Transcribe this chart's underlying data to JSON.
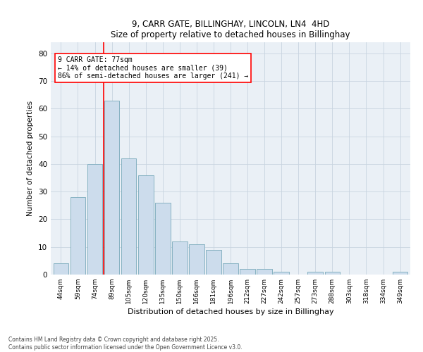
{
  "title1": "9, CARR GATE, BILLINGHAY, LINCOLN, LN4  4HD",
  "title2": "Size of property relative to detached houses in Billinghay",
  "xlabel": "Distribution of detached houses by size in Billinghay",
  "ylabel": "Number of detached properties",
  "categories": [
    "44sqm",
    "59sqm",
    "74sqm",
    "89sqm",
    "105sqm",
    "120sqm",
    "135sqm",
    "150sqm",
    "166sqm",
    "181sqm",
    "196sqm",
    "212sqm",
    "227sqm",
    "242sqm",
    "257sqm",
    "273sqm",
    "288sqm",
    "303sqm",
    "318sqm",
    "334sqm",
    "349sqm"
  ],
  "values": [
    4,
    28,
    40,
    63,
    42,
    36,
    26,
    12,
    11,
    9,
    4,
    2,
    2,
    1,
    0,
    1,
    1,
    0,
    0,
    0,
    1
  ],
  "bar_color": "#ccdcec",
  "bar_edge_color": "#7aaabb",
  "red_line_x": 2.5,
  "annotation_text": "9 CARR GATE: 77sqm\n← 14% of detached houses are smaller (39)\n86% of semi-detached houses are larger (241) →",
  "annotation_box_color": "white",
  "annotation_box_edge": "red",
  "ylim_max": 84,
  "yticks": [
    0,
    10,
    20,
    30,
    40,
    50,
    60,
    70,
    80
  ],
  "grid_color": "#c8d4e0",
  "background_color": "#eaf0f6",
  "footer1": "Contains HM Land Registry data © Crown copyright and database right 2025.",
  "footer2": "Contains public sector information licensed under the Open Government Licence v3.0."
}
